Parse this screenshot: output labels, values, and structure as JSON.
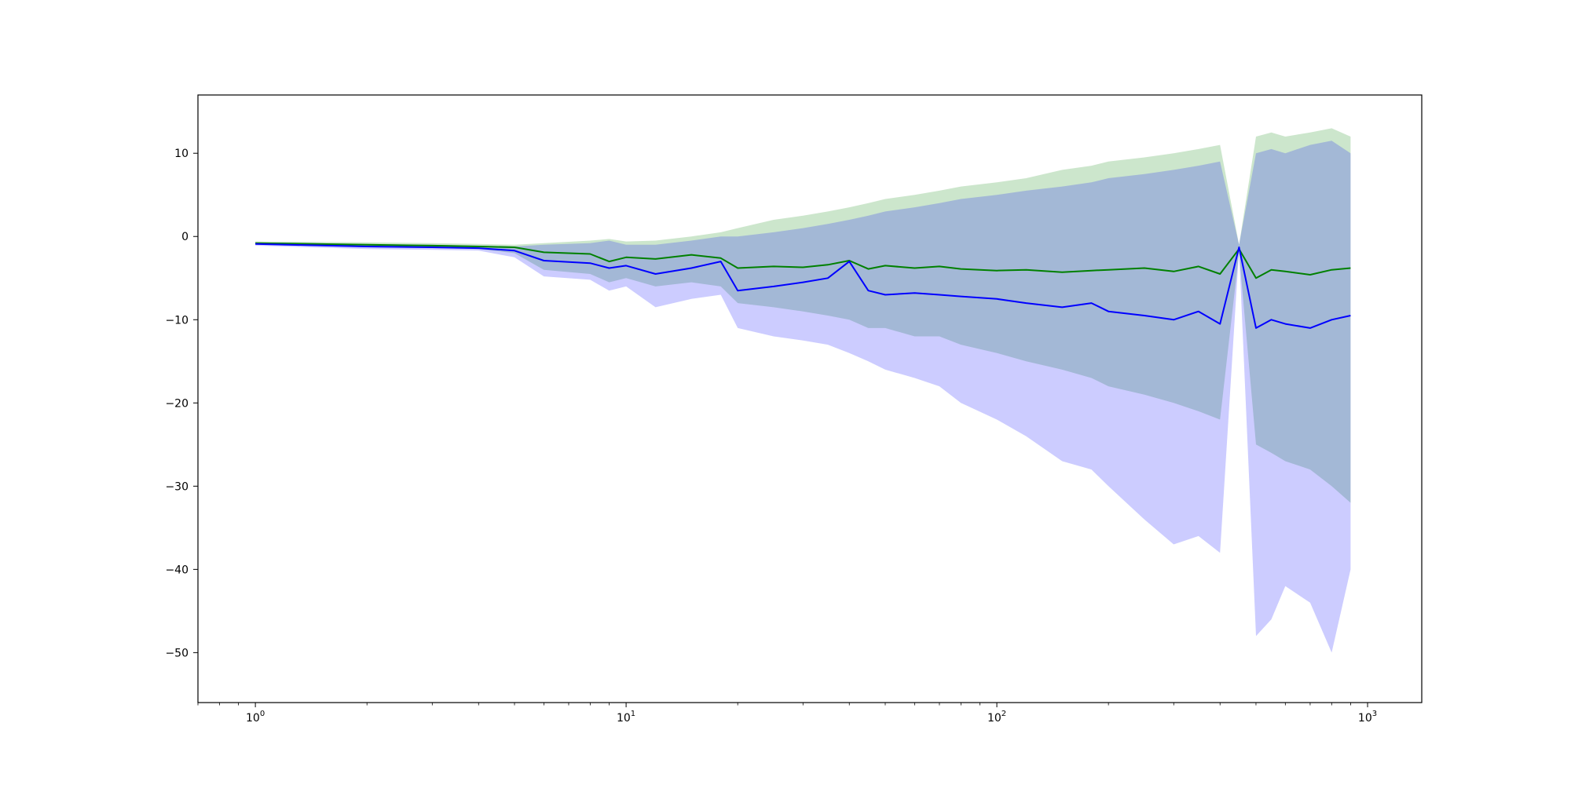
{
  "chart_data": {
    "type": "line",
    "title": "",
    "xlabel": "",
    "ylabel": "",
    "x_scale": "log",
    "xlim": [
      0.7,
      1400
    ],
    "ylim": [
      -56,
      17
    ],
    "grid": false,
    "legend": "none",
    "x_ticks": [
      {
        "value": 1,
        "base": "10",
        "exp": "0"
      },
      {
        "value": 10,
        "base": "10",
        "exp": "1"
      },
      {
        "value": 100,
        "base": "10",
        "exp": "2"
      },
      {
        "value": 1000,
        "base": "10",
        "exp": "3"
      }
    ],
    "y_ticks": [
      {
        "value": 10,
        "label": "10"
      },
      {
        "value": 0,
        "label": "0"
      },
      {
        "value": -10,
        "label": "−10"
      },
      {
        "value": -20,
        "label": "−20"
      },
      {
        "value": -30,
        "label": "−30"
      },
      {
        "value": -40,
        "label": "−40"
      },
      {
        "value": -50,
        "label": "−50"
      }
    ],
    "series": [
      {
        "color": "#008000",
        "band_color": "#008000",
        "band_opacity": 0.2,
        "x": [
          1,
          2,
          3,
          4,
          5,
          6,
          8,
          9,
          10,
          12,
          15,
          18,
          20,
          25,
          30,
          35,
          40,
          45,
          50,
          60,
          70,
          80,
          100,
          120,
          150,
          180,
          200,
          250,
          300,
          350,
          400,
          450,
          500,
          550,
          600,
          700,
          800,
          900
        ],
        "y": [
          -0.8,
          -1.0,
          -1.1,
          -1.2,
          -1.3,
          -1.9,
          -2.1,
          -3.0,
          -2.5,
          -2.7,
          -2.2,
          -2.6,
          -3.8,
          -3.6,
          -3.7,
          -3.4,
          -2.9,
          -3.9,
          -3.5,
          -3.8,
          -3.6,
          -3.9,
          -4.1,
          -4.0,
          -4.3,
          -4.1,
          -4.0,
          -3.8,
          -4.2,
          -3.6,
          -4.5,
          -1.5,
          -5.0,
          -4.0,
          -4.2,
          -4.6,
          -4.0,
          -3.8
        ],
        "lower": [
          -1.0,
          -1.3,
          -1.4,
          -1.5,
          -2.0,
          -4.0,
          -4.5,
          -5.5,
          -5.0,
          -6.0,
          -5.5,
          -6.0,
          -8.0,
          -8.5,
          -9.0,
          -9.5,
          -10.0,
          -11.0,
          -11.0,
          -12.0,
          -12.0,
          -13.0,
          -14.0,
          -15.0,
          -16.0,
          -17.0,
          -18.0,
          -19.0,
          -20.0,
          -21.0,
          -22.0,
          -2.0,
          -25.0,
          -26.0,
          -27.0,
          -28.0,
          -30.0,
          -32.0
        ],
        "upper": [
          -0.6,
          -0.7,
          -0.8,
          -0.9,
          -1.0,
          -0.8,
          -0.5,
          -0.3,
          -0.6,
          -0.5,
          0.0,
          0.5,
          1.0,
          2.0,
          2.5,
          3.0,
          3.5,
          4.0,
          4.5,
          5.0,
          5.5,
          6.0,
          6.5,
          7.0,
          8.0,
          8.5,
          9.0,
          9.5,
          10.0,
          10.5,
          11.0,
          -1.0,
          12.0,
          12.5,
          12.0,
          12.5,
          13.0,
          12.0
        ]
      },
      {
        "color": "#0000ff",
        "band_color": "#0000ff",
        "band_opacity": 0.2,
        "x": [
          1,
          2,
          3,
          4,
          5,
          6,
          8,
          9,
          10,
          12,
          15,
          18,
          20,
          25,
          30,
          35,
          40,
          45,
          50,
          60,
          70,
          80,
          100,
          120,
          150,
          180,
          200,
          250,
          300,
          350,
          400,
          450,
          500,
          550,
          600,
          700,
          800,
          900
        ],
        "y": [
          -0.9,
          -1.2,
          -1.3,
          -1.4,
          -1.7,
          -2.9,
          -3.2,
          -3.8,
          -3.5,
          -4.5,
          -3.8,
          -3.0,
          -6.5,
          -6.0,
          -5.5,
          -5.0,
          -3.0,
          -6.5,
          -7.0,
          -6.8,
          -7.0,
          -7.2,
          -7.5,
          -8.0,
          -8.5,
          -8.0,
          -9.0,
          -9.5,
          -10.0,
          -9.0,
          -10.5,
          -1.3,
          -11.0,
          -10.0,
          -10.5,
          -11.0,
          -10.0,
          -9.5
        ],
        "lower": [
          -1.1,
          -1.5,
          -1.6,
          -1.7,
          -2.5,
          -4.8,
          -5.2,
          -6.5,
          -6.0,
          -8.5,
          -7.5,
          -7.0,
          -11.0,
          -12.0,
          -12.5,
          -13.0,
          -14.0,
          -15.0,
          -16.0,
          -17.0,
          -18.0,
          -20.0,
          -22.0,
          -24.0,
          -27.0,
          -28.0,
          -30.0,
          -34.0,
          -37.0,
          -36.0,
          -38.0,
          -1.6,
          -48.0,
          -46.0,
          -42.0,
          -44.0,
          -50.0,
          -40.0
        ],
        "upper": [
          -0.7,
          -0.9,
          -1.0,
          -1.1,
          -1.2,
          -1.0,
          -0.8,
          -0.5,
          -1.0,
          -1.0,
          -0.5,
          0.0,
          0.0,
          0.5,
          1.0,
          1.5,
          2.0,
          2.5,
          3.0,
          3.5,
          4.0,
          4.5,
          5.0,
          5.5,
          6.0,
          6.5,
          7.0,
          7.5,
          8.0,
          8.5,
          9.0,
          -1.0,
          10.0,
          10.5,
          10.0,
          11.0,
          11.5,
          10.0
        ]
      }
    ]
  }
}
